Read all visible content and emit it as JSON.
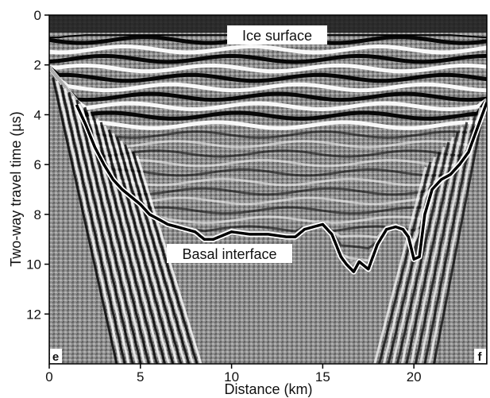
{
  "chart_data": {
    "type": "line",
    "title": "",
    "xlabel": "Distance (km)",
    "ylabel": "Two-way travel time (µs)",
    "xlim": [
      0,
      24
    ],
    "ylim": [
      14,
      0
    ],
    "y_inverted": true,
    "x_ticks": [
      "0",
      "5",
      "10",
      "15",
      "20"
    ],
    "y_ticks": [
      "0",
      "2",
      "4",
      "6",
      "8",
      "10",
      "12"
    ],
    "background": "radargram (ice-penetrating radar image)",
    "annotations": {
      "surface": "Ice surface",
      "basal": "Basal interface",
      "corner_left": "e",
      "corner_right": "f"
    },
    "series": [
      {
        "x": [
          0.0,
          0.5,
          1.0,
          2.0,
          3.0,
          4.0,
          5.0,
          6.0,
          7.0,
          8.0,
          10.0,
          12.0,
          14.0,
          16.0,
          18.0,
          20.0,
          21.0,
          22.0,
          23.0,
          24.0
        ],
        "y": [
          0.9,
          0.9,
          0.85,
          0.8,
          0.8,
          0.8,
          0.8,
          0.8,
          0.8,
          0.8,
          0.8,
          0.8,
          0.8,
          0.8,
          0.8,
          0.8,
          0.8,
          0.8,
          0.85,
          0.9
        ]
      },
      {
        "x": [
          1.5,
          2.0,
          2.5,
          3.0,
          3.5,
          4.0,
          4.5,
          5.0,
          5.5,
          6.0,
          6.5,
          7.0,
          7.5,
          8.0,
          8.5,
          9.0,
          10.0,
          11.0,
          12.0,
          13.0,
          13.5,
          14.0,
          14.5,
          15.0,
          15.5,
          16.0,
          16.3,
          16.7,
          17.0,
          17.5,
          18.0,
          18.5,
          19.0,
          19.4,
          19.7,
          20.0,
          20.3,
          20.6,
          21.0,
          21.5,
          22.0,
          22.5,
          23.0,
          23.5,
          24.0
        ],
        "y": [
          3.6,
          4.4,
          5.3,
          6.0,
          6.6,
          7.0,
          7.3,
          7.6,
          8.0,
          8.2,
          8.4,
          8.5,
          8.6,
          8.7,
          9.0,
          9.0,
          8.7,
          8.8,
          8.8,
          8.9,
          8.9,
          8.6,
          8.5,
          8.4,
          8.8,
          9.7,
          10.0,
          10.3,
          9.9,
          10.2,
          9.2,
          8.6,
          8.5,
          8.6,
          8.9,
          9.8,
          9.7,
          8.0,
          7.0,
          6.6,
          6.4,
          6.0,
          5.5,
          4.5,
          3.5
        ]
      }
    ]
  }
}
